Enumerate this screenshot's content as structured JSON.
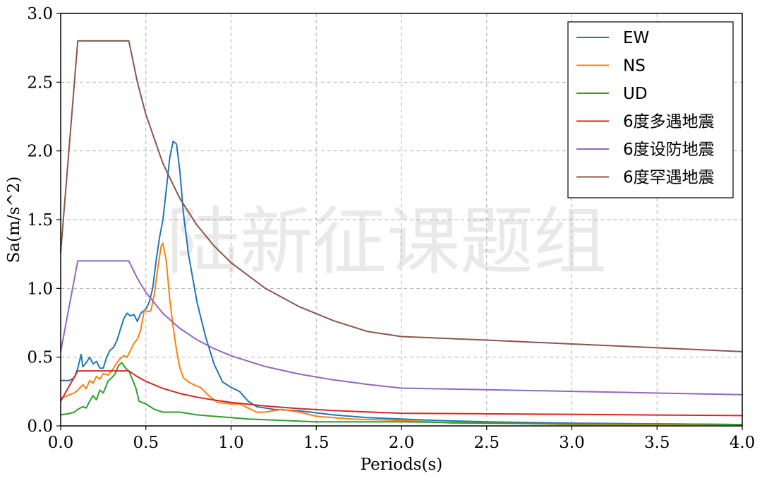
{
  "watermark": "陆新征课题组",
  "chart_data": {
    "type": "line",
    "title": "",
    "xlabel": "Periods(s)",
    "ylabel": "Sa(m/s^2)",
    "xlim": [
      0.0,
      4.0
    ],
    "ylim": [
      0.0,
      3.0
    ],
    "xticks": [
      "0.0",
      "0.5",
      "1.0",
      "1.5",
      "2.0",
      "2.5",
      "3.0",
      "3.5",
      "4.0"
    ],
    "yticks": [
      "0.0",
      "0.5",
      "1.0",
      "1.5",
      "2.0",
      "2.5",
      "3.0"
    ],
    "grid": true,
    "legend_position": "top-right",
    "series": [
      {
        "name": "EW",
        "color": "#1f77b4",
        "points": [
          [
            0.0,
            0.33
          ],
          [
            0.05,
            0.33
          ],
          [
            0.08,
            0.35
          ],
          [
            0.1,
            0.42
          ],
          [
            0.12,
            0.52
          ],
          [
            0.13,
            0.43
          ],
          [
            0.15,
            0.46
          ],
          [
            0.17,
            0.5
          ],
          [
            0.19,
            0.45
          ],
          [
            0.21,
            0.47
          ],
          [
            0.23,
            0.42
          ],
          [
            0.25,
            0.42
          ],
          [
            0.27,
            0.5
          ],
          [
            0.29,
            0.55
          ],
          [
            0.31,
            0.57
          ],
          [
            0.33,
            0.62
          ],
          [
            0.35,
            0.7
          ],
          [
            0.37,
            0.78
          ],
          [
            0.39,
            0.82
          ],
          [
            0.41,
            0.8
          ],
          [
            0.43,
            0.81
          ],
          [
            0.45,
            0.76
          ],
          [
            0.47,
            0.82
          ],
          [
            0.5,
            0.85
          ],
          [
            0.52,
            0.9
          ],
          [
            0.54,
            1.0
          ],
          [
            0.56,
            1.2
          ],
          [
            0.58,
            1.37
          ],
          [
            0.6,
            1.5
          ],
          [
            0.62,
            1.72
          ],
          [
            0.64,
            1.95
          ],
          [
            0.66,
            2.07
          ],
          [
            0.68,
            2.05
          ],
          [
            0.7,
            1.85
          ],
          [
            0.72,
            1.55
          ],
          [
            0.75,
            1.25
          ],
          [
            0.8,
            0.9
          ],
          [
            0.85,
            0.65
          ],
          [
            0.9,
            0.45
          ],
          [
            0.95,
            0.32
          ],
          [
            1.0,
            0.28
          ],
          [
            1.05,
            0.25
          ],
          [
            1.1,
            0.18
          ],
          [
            1.15,
            0.14
          ],
          [
            1.25,
            0.12
          ],
          [
            1.4,
            0.11
          ],
          [
            1.6,
            0.08
          ],
          [
            1.8,
            0.06
          ],
          [
            2.0,
            0.05
          ],
          [
            2.2,
            0.04
          ],
          [
            2.5,
            0.03
          ],
          [
            3.0,
            0.02
          ],
          [
            3.5,
            0.015
          ],
          [
            4.0,
            0.01
          ]
        ]
      },
      {
        "name": "NS",
        "color": "#ff7f0e",
        "points": [
          [
            0.0,
            0.2
          ],
          [
            0.04,
            0.22
          ],
          [
            0.08,
            0.24
          ],
          [
            0.1,
            0.26
          ],
          [
            0.13,
            0.3
          ],
          [
            0.15,
            0.27
          ],
          [
            0.17,
            0.33
          ],
          [
            0.19,
            0.31
          ],
          [
            0.21,
            0.36
          ],
          [
            0.23,
            0.34
          ],
          [
            0.25,
            0.38
          ],
          [
            0.28,
            0.37
          ],
          [
            0.31,
            0.42
          ],
          [
            0.33,
            0.46
          ],
          [
            0.35,
            0.49
          ],
          [
            0.37,
            0.51
          ],
          [
            0.39,
            0.5
          ],
          [
            0.41,
            0.55
          ],
          [
            0.43,
            0.6
          ],
          [
            0.45,
            0.63
          ],
          [
            0.47,
            0.7
          ],
          [
            0.49,
            0.84
          ],
          [
            0.51,
            0.83
          ],
          [
            0.53,
            0.84
          ],
          [
            0.55,
            0.96
          ],
          [
            0.57,
            1.15
          ],
          [
            0.59,
            1.31
          ],
          [
            0.6,
            1.33
          ],
          [
            0.62,
            1.2
          ],
          [
            0.64,
            0.92
          ],
          [
            0.66,
            0.72
          ],
          [
            0.68,
            0.55
          ],
          [
            0.7,
            0.42
          ],
          [
            0.72,
            0.35
          ],
          [
            0.75,
            0.32
          ],
          [
            0.78,
            0.3
          ],
          [
            0.82,
            0.28
          ],
          [
            0.87,
            0.22
          ],
          [
            0.92,
            0.17
          ],
          [
            1.0,
            0.16
          ],
          [
            1.05,
            0.16
          ],
          [
            1.1,
            0.13
          ],
          [
            1.15,
            0.1
          ],
          [
            1.2,
            0.1
          ],
          [
            1.3,
            0.12
          ],
          [
            1.4,
            0.1
          ],
          [
            1.5,
            0.07
          ],
          [
            1.7,
            0.05
          ],
          [
            2.0,
            0.04
          ],
          [
            2.3,
            0.02
          ],
          [
            2.6,
            0.02
          ],
          [
            3.0,
            0.01
          ],
          [
            3.5,
            0.01
          ],
          [
            4.0,
            0.01
          ]
        ]
      },
      {
        "name": "UD",
        "color": "#2ca02c",
        "points": [
          [
            0.0,
            0.08
          ],
          [
            0.05,
            0.09
          ],
          [
            0.08,
            0.1
          ],
          [
            0.1,
            0.12
          ],
          [
            0.13,
            0.14
          ],
          [
            0.15,
            0.13
          ],
          [
            0.17,
            0.18
          ],
          [
            0.19,
            0.22
          ],
          [
            0.21,
            0.19
          ],
          [
            0.23,
            0.26
          ],
          [
            0.25,
            0.24
          ],
          [
            0.28,
            0.33
          ],
          [
            0.3,
            0.35
          ],
          [
            0.32,
            0.38
          ],
          [
            0.34,
            0.44
          ],
          [
            0.36,
            0.46
          ],
          [
            0.38,
            0.42
          ],
          [
            0.4,
            0.4
          ],
          [
            0.42,
            0.34
          ],
          [
            0.44,
            0.28
          ],
          [
            0.46,
            0.18
          ],
          [
            0.48,
            0.17
          ],
          [
            0.5,
            0.16
          ],
          [
            0.55,
            0.12
          ],
          [
            0.6,
            0.1
          ],
          [
            0.7,
            0.1
          ],
          [
            0.8,
            0.08
          ],
          [
            0.9,
            0.07
          ],
          [
            1.0,
            0.06
          ],
          [
            1.1,
            0.05
          ],
          [
            1.3,
            0.04
          ],
          [
            1.5,
            0.03
          ],
          [
            1.8,
            0.03
          ],
          [
            2.0,
            0.03
          ],
          [
            2.5,
            0.02
          ],
          [
            3.0,
            0.015
          ],
          [
            3.5,
            0.015
          ],
          [
            4.0,
            0.01
          ]
        ]
      },
      {
        "name": "6度多遇地震",
        "color": "#d62728",
        "points": [
          [
            0.0,
            0.18
          ],
          [
            0.1,
            0.4
          ],
          [
            0.4,
            0.4
          ],
          [
            0.45,
            0.358
          ],
          [
            0.5,
            0.324
          ],
          [
            0.6,
            0.273
          ],
          [
            0.7,
            0.236
          ],
          [
            0.8,
            0.209
          ],
          [
            0.9,
            0.188
          ],
          [
            1.0,
            0.171
          ],
          [
            1.2,
            0.145
          ],
          [
            1.4,
            0.126
          ],
          [
            1.6,
            0.112
          ],
          [
            1.8,
            0.101
          ],
          [
            2.0,
            0.092
          ],
          [
            2.5,
            0.088
          ],
          [
            3.0,
            0.084
          ],
          [
            3.5,
            0.079
          ],
          [
            4.0,
            0.075
          ]
        ]
      },
      {
        "name": "6度设防地震",
        "color": "#9467bd",
        "points": [
          [
            0.0,
            0.54
          ],
          [
            0.1,
            1.2
          ],
          [
            0.4,
            1.2
          ],
          [
            0.45,
            1.073
          ],
          [
            0.5,
            0.971
          ],
          [
            0.6,
            0.818
          ],
          [
            0.7,
            0.709
          ],
          [
            0.8,
            0.626
          ],
          [
            0.9,
            0.562
          ],
          [
            1.0,
            0.51
          ],
          [
            1.2,
            0.432
          ],
          [
            1.4,
            0.377
          ],
          [
            1.6,
            0.335
          ],
          [
            1.8,
            0.302
          ],
          [
            2.0,
            0.275
          ],
          [
            2.5,
            0.263
          ],
          [
            3.0,
            0.251
          ],
          [
            3.5,
            0.239
          ],
          [
            4.0,
            0.227
          ]
        ]
      },
      {
        "name": "6度罕遇地震",
        "color": "#8c564b",
        "points": [
          [
            0.0,
            1.26
          ],
          [
            0.1,
            2.8
          ],
          [
            0.4,
            2.8
          ],
          [
            0.45,
            2.5
          ],
          [
            0.5,
            2.265
          ],
          [
            0.6,
            1.909
          ],
          [
            0.7,
            1.653
          ],
          [
            0.8,
            1.46
          ],
          [
            0.9,
            1.309
          ],
          [
            1.0,
            1.187
          ],
          [
            1.2,
            1.001
          ],
          [
            1.4,
            0.867
          ],
          [
            1.6,
            0.766
          ],
          [
            1.8,
            0.687
          ],
          [
            2.0,
            0.65
          ],
          [
            2.5,
            0.624
          ],
          [
            3.0,
            0.596
          ],
          [
            3.5,
            0.568
          ],
          [
            4.0,
            0.54
          ]
        ]
      }
    ]
  }
}
